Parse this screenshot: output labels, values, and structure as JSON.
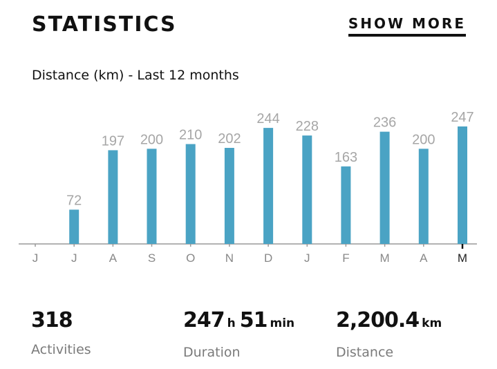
{
  "header": {
    "title": "STATISTICS",
    "show_more_label": "SHOW MORE"
  },
  "chart_data": {
    "type": "bar",
    "title": "Distance (km) - Last 12 months",
    "categories": [
      "J",
      "J",
      "A",
      "S",
      "O",
      "N",
      "D",
      "J",
      "F",
      "M",
      "A",
      "M"
    ],
    "values": [
      0,
      72,
      197,
      200,
      210,
      202,
      244,
      228,
      163,
      236,
      200,
      247
    ],
    "value_labels": [
      "",
      "72",
      "197",
      "200",
      "210",
      "202",
      "244",
      "228",
      "163",
      "236",
      "200",
      "247"
    ],
    "current_index": 11,
    "xlabel": "",
    "ylabel": "",
    "ylim": [
      0,
      247
    ],
    "grid": false,
    "bar_color": "#4aa3c4",
    "label_color": "#a6a6a6"
  },
  "stats": {
    "activities": {
      "value": "318",
      "label": "Activities"
    },
    "duration": {
      "hours": "247",
      "hours_unit": "h",
      "minutes": "51",
      "minutes_unit": "min",
      "label": "Duration"
    },
    "distance": {
      "value": "2,200.4",
      "unit": "km",
      "label": "Distance"
    }
  }
}
